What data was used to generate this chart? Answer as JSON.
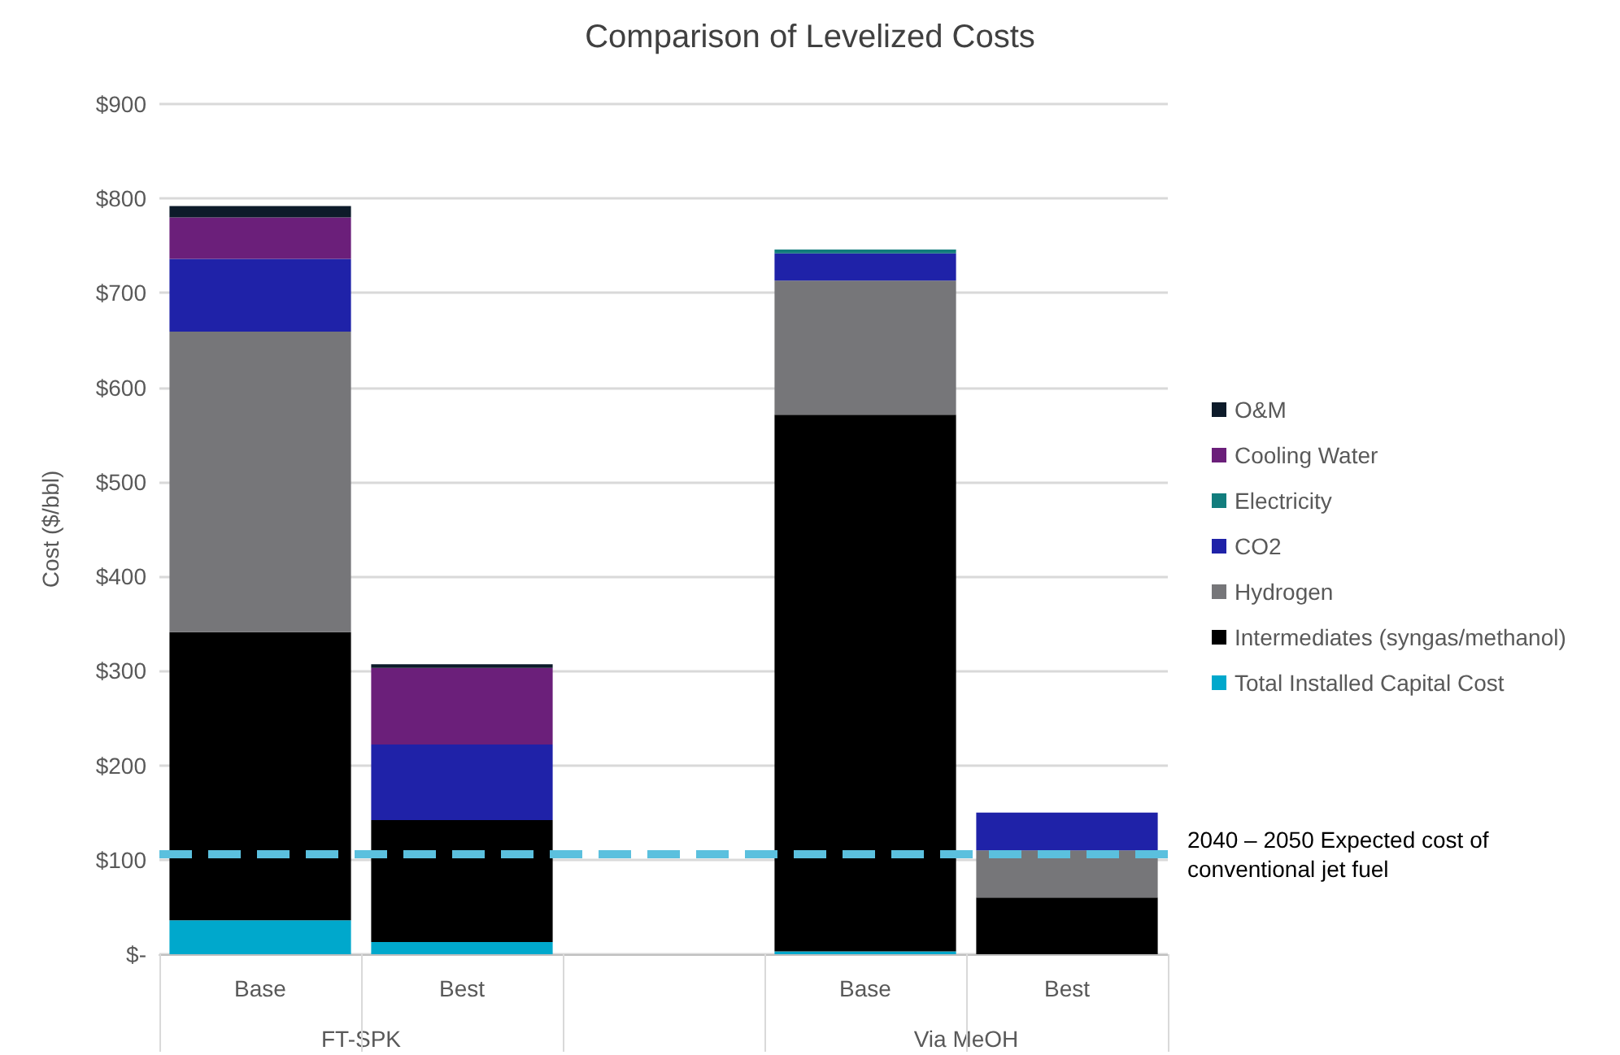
{
  "chart_data": {
    "type": "bar",
    "title": "Comparison of Levelized Costs",
    "ylabel": "Cost ($/bbl)",
    "categories": [
      "Base",
      "Best",
      null,
      "Base",
      "Best"
    ],
    "stacked": true,
    "series": [
      {
        "name": "Total Installed Capital Cost",
        "color": "#00a8cc",
        "values": [
          36,
          13,
          null,
          3,
          0
        ]
      },
      {
        "name": "Intermediates (syngas/methanol)",
        "color": "#000000",
        "values": [
          305,
          129,
          null,
          568,
          60
        ]
      },
      {
        "name": "Hydrogen",
        "color": "#767679",
        "values": [
          318,
          0,
          null,
          142,
          50
        ]
      },
      {
        "name": "CO2",
        "color": "#1f22a8",
        "values": [
          77,
          80,
          null,
          29,
          40
        ]
      },
      {
        "name": "Electricity",
        "color": "#127d7d",
        "values": [
          0,
          0,
          null,
          4,
          0
        ]
      },
      {
        "name": "Cooling Water",
        "color": "#6b1f7a",
        "values": [
          44,
          81,
          null,
          0,
          0
        ]
      },
      {
        "name": "O&M",
        "color": "#0d1b2a",
        "values": [
          12,
          4,
          null,
          0,
          0
        ]
      }
    ],
    "ylim": [
      0,
      900
    ],
    "yticks": [
      {
        "value": 0,
        "label": "$-"
      },
      {
        "value": 100,
        "label": "$100"
      },
      {
        "value": 200,
        "label": "$200"
      },
      {
        "value": 300,
        "label": "$300"
      },
      {
        "value": 400,
        "label": "$400"
      },
      {
        "value": 500,
        "label": "$500"
      },
      {
        "value": 600,
        "label": "$600"
      },
      {
        "value": 700,
        "label": "$700"
      },
      {
        "value": 800,
        "label": "$800"
      },
      {
        "value": 900,
        "label": "$900"
      }
    ],
    "ref_lines": [
      {
        "axis": "y",
        "value": 106,
        "label": "2040 – 2050 Expected cost of conventional jet fuel",
        "color": "#5bc0de",
        "line_style": "dashed"
      }
    ],
    "annotations": [
      "FT-SPK",
      "Via MeOH"
    ],
    "grid": "y",
    "legend": "right"
  }
}
